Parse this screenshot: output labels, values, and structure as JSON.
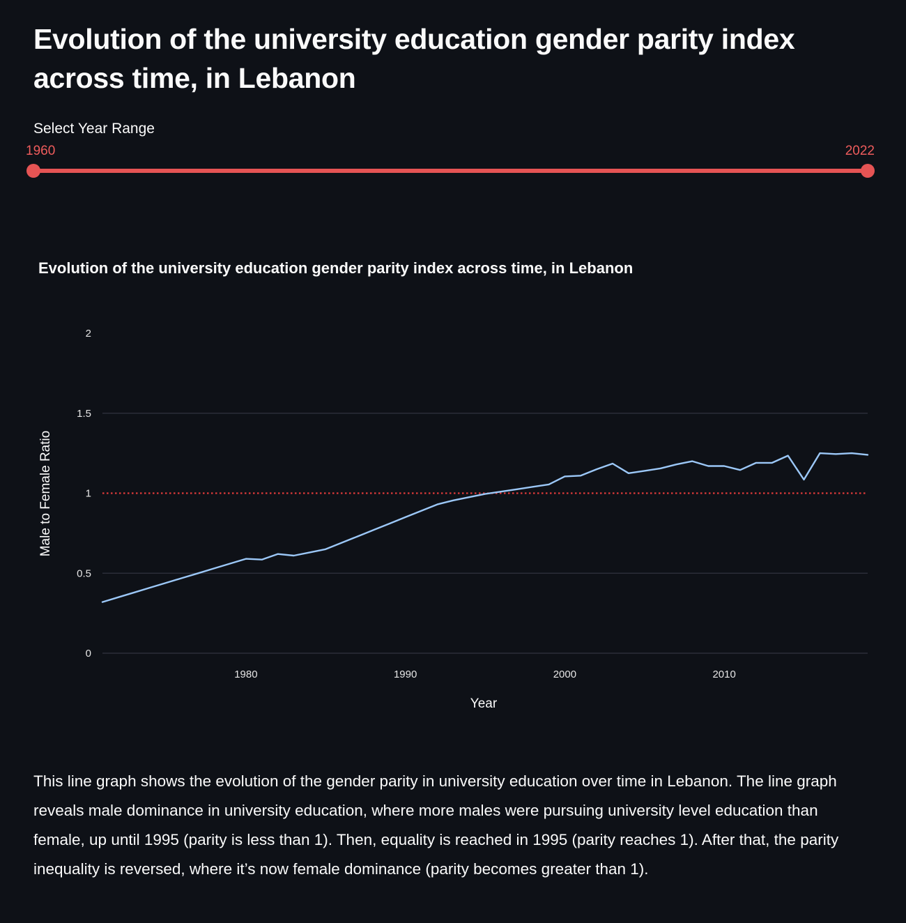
{
  "page": {
    "title": "Evolution of the university education gender parity index across time, in Lebanon",
    "description": "This line graph shows the evolution of the gender parity in university education over time in Lebanon. The line graph reveals male dominance in university education, where more males were pursuing university level education than female, up until 1995 (parity is less than 1). Then, equality is reached in 1995 (parity reaches 1). After that, the parity inequality is reversed, where it’s now female dominance (parity becomes greater than 1)."
  },
  "slider": {
    "label": "Select Year Range",
    "min_value": "1960",
    "max_value": "2022",
    "accent_color": "#e55454"
  },
  "chart_data": {
    "type": "line",
    "title": "Evolution of the university education gender parity index across time, in Lebanon",
    "xlabel": "Year",
    "ylabel": "Male to Female Ratio",
    "xlim": [
      1971,
      2019
    ],
    "ylim": [
      0,
      2
    ],
    "x_ticks": [
      1980,
      1990,
      2000,
      2010
    ],
    "y_ticks": [
      0,
      0.5,
      1,
      1.5,
      2
    ],
    "grid": true,
    "line_color": "#9cc8f8",
    "reference_line": {
      "y": 1,
      "style": "dotted",
      "color": "#e03a3a"
    },
    "series": [
      {
        "x": [
          1971,
          1972,
          1973,
          1974,
          1975,
          1976,
          1977,
          1978,
          1979,
          1980,
          1981,
          1982,
          1983,
          1984,
          1985,
          1986,
          1987,
          1988,
          1989,
          1990,
          1991,
          1992,
          1993,
          1994,
          1995,
          1996,
          1997,
          1998,
          1999,
          2000,
          2001,
          2002,
          2003,
          2004,
          2005,
          2006,
          2007,
          2008,
          2009,
          2010,
          2011,
          2012,
          2013,
          2014,
          2015,
          2016,
          2017,
          2018,
          2019
        ],
        "values": [
          0.32,
          0.35,
          0.38,
          0.41,
          0.44,
          0.47,
          0.5,
          0.53,
          0.56,
          0.59,
          0.585,
          0.62,
          0.61,
          0.63,
          0.65,
          0.69,
          0.73,
          0.77,
          0.81,
          0.85,
          0.89,
          0.93,
          0.955,
          0.975,
          0.995,
          1.01,
          1.025,
          1.04,
          1.055,
          1.105,
          1.11,
          1.15,
          1.185,
          1.125,
          1.14,
          1.155,
          1.18,
          1.2,
          1.17,
          1.17,
          1.145,
          1.19,
          1.19,
          1.235,
          1.085,
          1.25,
          1.245,
          1.25,
          1.24
        ]
      }
    ]
  }
}
